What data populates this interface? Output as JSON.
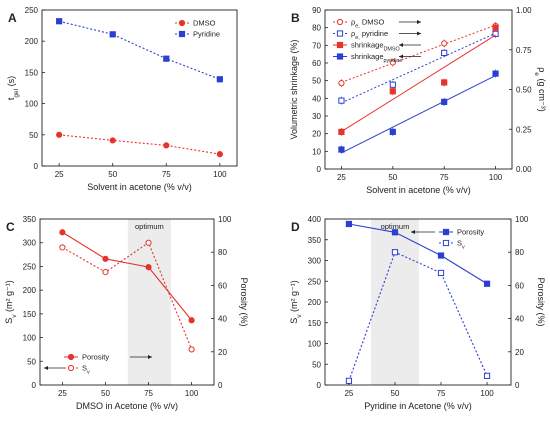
{
  "chart_data": [
    {
      "panel": "A",
      "type": "scatter",
      "x": [
        25,
        50,
        75,
        100
      ],
      "xlabel": "Solvent in acetone (% v/v)",
      "ylabel": "t_gel (s)",
      "xticks": [
        "25",
        "50",
        "75",
        "100"
      ],
      "yticks": [
        "0",
        "50",
        "100",
        "150",
        "200",
        "250"
      ],
      "xlim": [
        17,
        108
      ],
      "ylim": [
        0,
        250
      ],
      "legend_position": "top-right",
      "series": [
        {
          "name": "DMSO",
          "color": "#e8322c",
          "marker": "circle",
          "values": [
            50,
            41,
            33,
            19
          ]
        },
        {
          "name": "Pyridine",
          "color": "#2b3fd1",
          "marker": "square",
          "values": [
            232,
            211,
            172,
            139
          ]
        }
      ]
    },
    {
      "panel": "B",
      "type": "scatter",
      "x": [
        25,
        50,
        75,
        100
      ],
      "xlabel": "Solvent in acetone (% v/v)",
      "ylabel": "Volumetric shrinkage (%)",
      "y2label": "ρ_e (g cm⁻³)",
      "xticks": [
        "25",
        "50",
        "75",
        "100"
      ],
      "yticks": [
        "0",
        "10",
        "20",
        "30",
        "40",
        "50",
        "60",
        "70",
        "80",
        "90"
      ],
      "y2ticks": [
        "0.00",
        "0.25",
        "0.50",
        "0.75",
        "1.00"
      ],
      "xlim": [
        17,
        108
      ],
      "ylim": [
        0,
        90
      ],
      "y2lim": [
        0,
        1.0
      ],
      "legend_position": "top-left",
      "series": [
        {
          "name": "ρ_e, DMSO",
          "color": "#e8322c",
          "marker": "open-circle",
          "axis": "right",
          "values": [
            0.54,
            0.67,
            0.79,
            0.9
          ]
        },
        {
          "name": "ρ_e, pyridine",
          "color": "#2b3fd1",
          "marker": "open-square",
          "axis": "right",
          "values": [
            0.43,
            0.53,
            0.73,
            0.85
          ]
        },
        {
          "name": "shrinkage_DMSO",
          "color": "#e8322c",
          "marker": "square",
          "axis": "left",
          "values": [
            21,
            44,
            49,
            80
          ]
        },
        {
          "name": "shrinkage_pyridine",
          "color": "#2b3fd1",
          "marker": "square",
          "axis": "left",
          "values": [
            11,
            21,
            38,
            54
          ]
        }
      ]
    },
    {
      "panel": "C",
      "type": "line",
      "x": [
        25,
        50,
        75,
        100
      ],
      "xlabel": "DMSO in Acetone (% v/v)",
      "ylabel": "S_v (m² g⁻¹)",
      "y2label": "Porosity (%)",
      "xticks": [
        "25",
        "50",
        "75",
        "100"
      ],
      "yticks": [
        "0",
        "50",
        "100",
        "150",
        "200",
        "250",
        "300",
        "350"
      ],
      "y2ticks": [
        "0",
        "20",
        "40",
        "60",
        "80",
        "100"
      ],
      "xlim": [
        12,
        113
      ],
      "ylim": [
        0,
        350
      ],
      "y2lim": [
        0,
        100
      ],
      "annotation": "optimum",
      "optimum_range": [
        63,
        88
      ],
      "legend_position": "bottom-left",
      "series": [
        {
          "name": "Porosity",
          "color": "#e8322c",
          "marker": "circle",
          "style": "solid",
          "axis": "right",
          "values": [
            92,
            76,
            71,
            39
          ]
        },
        {
          "name": "S_v",
          "color": "#e8322c",
          "marker": "open-circle",
          "style": "dotted",
          "axis": "left",
          "values": [
            290,
            238,
            300,
            75
          ]
        }
      ]
    },
    {
      "panel": "D",
      "type": "line",
      "x": [
        25,
        50,
        75,
        100
      ],
      "xlabel": "Pyridine in Acetone (% v/v)",
      "ylabel": "S_v (m² g⁻¹)",
      "y2label": "Porosity (%)",
      "xticks": [
        "25",
        "50",
        "75",
        "100"
      ],
      "yticks": [
        "0",
        "50",
        "100",
        "150",
        "200",
        "250",
        "300",
        "350",
        "400"
      ],
      "y2ticks": [
        "0",
        "20",
        "40",
        "60",
        "80",
        "100"
      ],
      "xlim": [
        12,
        113
      ],
      "ylim": [
        0,
        400
      ],
      "y2lim": [
        0,
        100
      ],
      "annotation": "optimum",
      "optimum_range": [
        37,
        63
      ],
      "legend_position": "top-right",
      "series": [
        {
          "name": "Porosity",
          "color": "#2b3fd1",
          "marker": "square",
          "style": "solid",
          "axis": "right",
          "values": [
            97,
            92,
            78,
            61
          ]
        },
        {
          "name": "S_v",
          "color": "#2b3fd1",
          "marker": "open-square",
          "style": "dotted",
          "axis": "left",
          "values": [
            10,
            320,
            270,
            22
          ]
        }
      ]
    }
  ]
}
